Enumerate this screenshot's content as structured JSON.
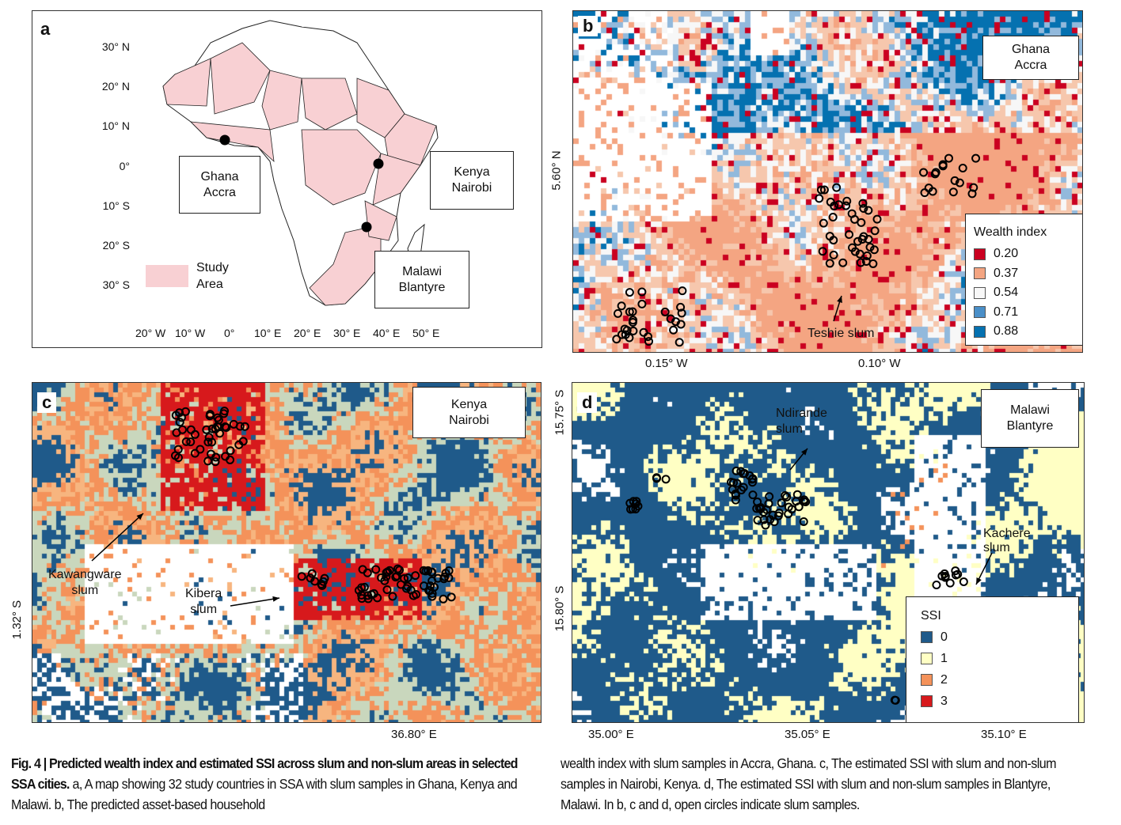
{
  "panel_a": {
    "letter": "a",
    "lat_labels": [
      "30° N",
      "20° N",
      "10° N",
      "0°",
      "10° S",
      "20° S",
      "30° S"
    ],
    "lon_labels": [
      "20° W",
      "10° W",
      "0°",
      "10° E",
      "20° E",
      "30° E",
      "40° E",
      "50° E"
    ],
    "boxes": [
      [
        "Ghana",
        "Accra"
      ],
      [
        "Kenya",
        "Nairobi"
      ],
      [
        "Malawi",
        "Blantyre"
      ]
    ],
    "legend": [
      "Study",
      "Area"
    ],
    "study_color": "#f8d0d3"
  },
  "panel_b": {
    "letter": "b",
    "box": [
      "Ghana",
      "Accra"
    ],
    "y_label": "5.60° N",
    "x_labels": [
      "0.15° W",
      "0.10° W"
    ],
    "annotation": "Teshie slum",
    "legend_title": "Wealth index",
    "legend": [
      {
        "label": "0.20",
        "color": "#ca0020"
      },
      {
        "label": "0.37",
        "color": "#f4a582"
      },
      {
        "label": "0.54",
        "color": "#f7f7f7"
      },
      {
        "label": "0.71",
        "color": "#4a8fc8"
      },
      {
        "label": "0.88",
        "color": "#0571b0"
      }
    ]
  },
  "panel_c": {
    "letter": "c",
    "box": [
      "Kenya",
      "Nairobi"
    ],
    "y_label": "1.32° S",
    "x_label": "36.80° E",
    "annotations": [
      [
        "Kawangware",
        "slum"
      ],
      [
        "Kibera",
        "slum"
      ]
    ]
  },
  "panel_d": {
    "letter": "d",
    "box": [
      "Malawi",
      "Blantyre"
    ],
    "y_labels": [
      "15.75° S",
      "15.80° S"
    ],
    "x_labels": [
      "35.00° E",
      "35.05° E",
      "35.10° E"
    ],
    "annotations": [
      [
        "Ndirande",
        "slum"
      ],
      [
        "Kachere",
        "slum"
      ]
    ],
    "legend_title": "SSI",
    "legend": [
      {
        "label": "0",
        "color": "#1f5a8a"
      },
      {
        "label": "1",
        "color": "#ffffc4"
      },
      {
        "label": "2",
        "color": "#f4925a"
      },
      {
        "label": "3",
        "color": "#d7191c"
      }
    ]
  },
  "caption": {
    "bold": "Fig. 4 | Predicted wealth index and estimated SSI across slum and non-slum areas in selected SSA cities.",
    "text": " a, A map showing 32 study countries in SSA with slum samples in Ghana, Kenya and Malawi. b, The predicted asset-based household wealth index with slum samples in Accra, Ghana. c, The estimated SSI with slum and non-slum samples in Nairobi, Kenya. d, The estimated SSI with slum and non-slum samples in Blantyre, Malawi. In b, c and d, open circles indicate slum samples."
  }
}
